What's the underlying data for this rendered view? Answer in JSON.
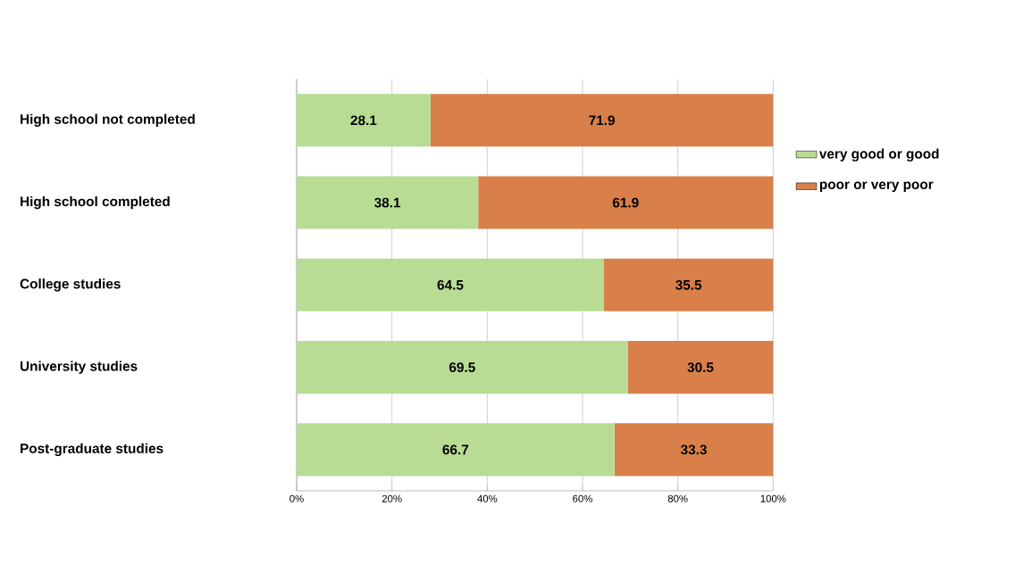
{
  "chart_data": {
    "type": "bar",
    "orientation": "horizontal",
    "stacked": true,
    "categories": [
      "High school not completed",
      "High school completed",
      "College studies",
      "University studies",
      "Post-graduate studies"
    ],
    "series": [
      {
        "name": "very good or good",
        "color": "#b8dc94",
        "values": [
          28.1,
          38.1,
          64.5,
          69.5,
          66.7
        ]
      },
      {
        "name": "poor or very poor",
        "color": "#d9804a",
        "values": [
          71.9,
          61.9,
          35.5,
          30.5,
          33.3
        ]
      }
    ],
    "xlim": [
      0,
      100
    ],
    "xticks": [
      {
        "value": 0,
        "label": "0%"
      },
      {
        "value": 20,
        "label": "20%"
      },
      {
        "value": 40,
        "label": "40%"
      },
      {
        "value": 60,
        "label": "60%"
      },
      {
        "value": 80,
        "label": "80%"
      },
      {
        "value": 100,
        "label": "100%"
      }
    ],
    "grid": "x",
    "legend": "right",
    "data_labels": true
  }
}
